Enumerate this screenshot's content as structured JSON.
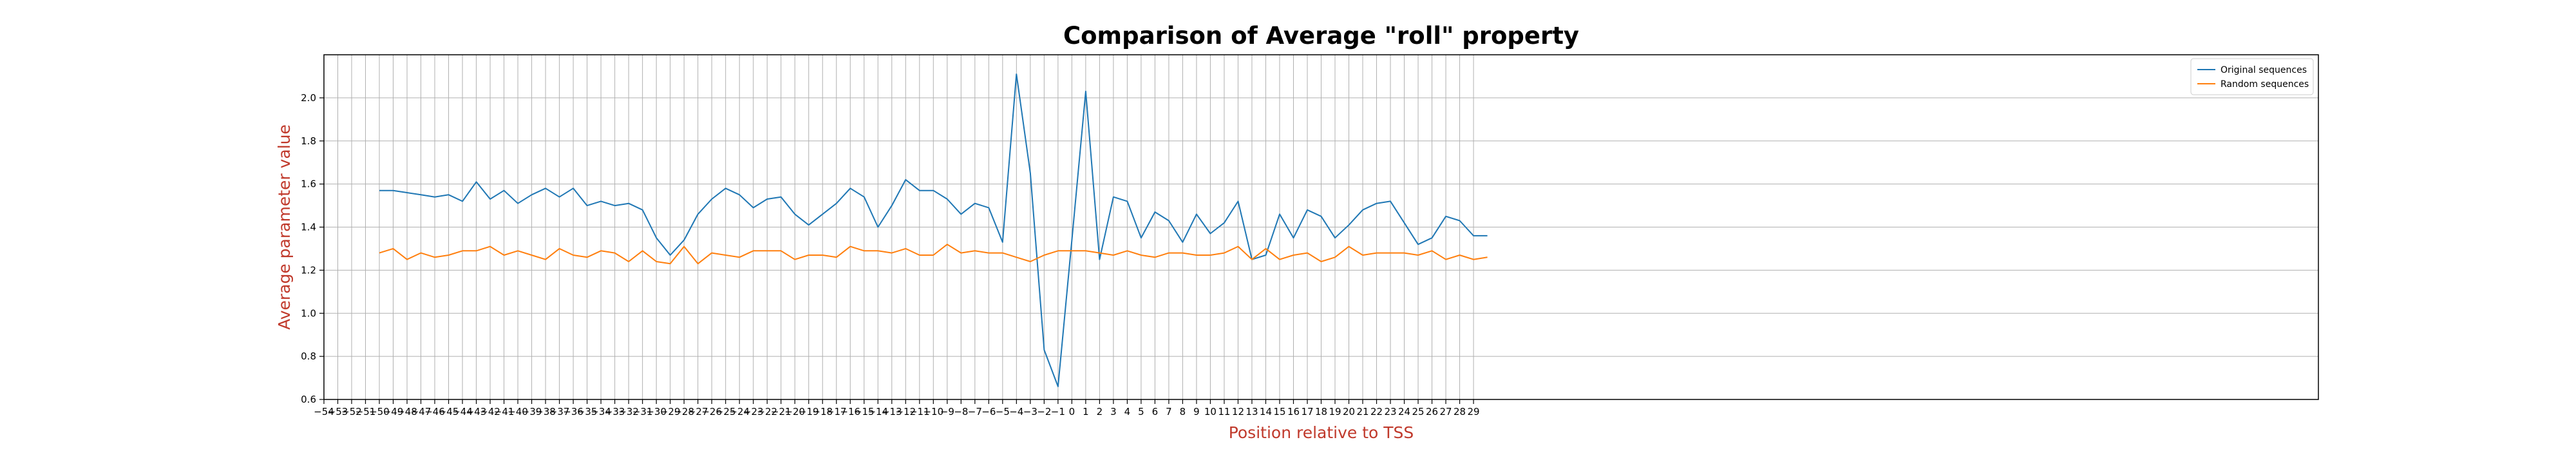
{
  "chart_data": {
    "type": "line",
    "title": "Comparison of Average \"roll\" property",
    "xlabel": "Position relative to TSS",
    "ylabel": "Average parameter value",
    "xlim": [
      -54,
      90
    ],
    "ylim": [
      0.6,
      2.2
    ],
    "grid": true,
    "legend_position": "top-right",
    "x_ticks": [
      -54,
      -53,
      -52,
      -51,
      -50,
      -49,
      -48,
      -47,
      -46,
      -45,
      -44,
      -43,
      -42,
      -41,
      -40,
      -39,
      -38,
      -37,
      -36,
      -35,
      -34,
      -33,
      -32,
      -31,
      -30,
      -29,
      -28,
      -27,
      -26,
      -25,
      -24,
      -23,
      -22,
      -21,
      -20,
      -19,
      -18,
      -17,
      -16,
      -15,
      -14,
      -13,
      -12,
      -11,
      -10,
      -9,
      -8,
      -7,
      -6,
      -5,
      -4,
      -3,
      -2,
      -1,
      0,
      1,
      2,
      3,
      4,
      5,
      6,
      7,
      8,
      9,
      10,
      11,
      12,
      13,
      14,
      15,
      16,
      17,
      18,
      19,
      20,
      21,
      22,
      23,
      24,
      25,
      26,
      27,
      28,
      29
    ],
    "y_ticks": [
      0.6,
      0.8,
      1.0,
      1.2,
      1.4,
      1.6,
      1.8,
      2.0
    ],
    "x": [
      -50,
      -49,
      -48,
      -47,
      -46,
      -45,
      -44,
      -43,
      -42,
      -41,
      -40,
      -39,
      -38,
      -37,
      -36,
      -35,
      -34,
      -33,
      -32,
      -31,
      -30,
      -29,
      -28,
      -27,
      -26,
      -25,
      -24,
      -23,
      -22,
      -21,
      -20,
      -19,
      -18,
      -17,
      -16,
      -15,
      -14,
      -13,
      -12,
      -11,
      -10,
      -9,
      -8,
      -7,
      -6,
      -5,
      -4,
      -3,
      -2,
      -1,
      0,
      1,
      2,
      3,
      4,
      5,
      6,
      7,
      8,
      9,
      10,
      11,
      12,
      13,
      14,
      15,
      16,
      17,
      18,
      19,
      20,
      21,
      22,
      23,
      24,
      25,
      26,
      27,
      28,
      29,
      30
    ],
    "series": [
      {
        "name": "Original sequences",
        "color": "#1f77b4",
        "values": [
          1.57,
          1.57,
          1.56,
          1.55,
          1.54,
          1.55,
          1.52,
          1.61,
          1.53,
          1.57,
          1.51,
          1.55,
          1.58,
          1.54,
          1.58,
          1.5,
          1.52,
          1.5,
          1.51,
          1.48,
          1.35,
          1.27,
          1.34,
          1.46,
          1.53,
          1.58,
          1.55,
          1.49,
          1.53,
          1.54,
          1.46,
          1.41,
          1.46,
          1.51,
          1.58,
          1.54,
          1.4,
          1.5,
          1.62,
          1.57,
          1.57,
          1.53,
          1.46,
          1.51,
          1.49,
          1.33,
          2.11,
          1.65,
          0.83,
          0.66,
          1.34,
          2.03,
          1.25,
          1.54,
          1.52,
          1.35,
          1.47,
          1.43,
          1.33,
          1.46,
          1.37,
          1.42,
          1.52,
          1.25,
          1.27,
          1.46,
          1.35,
          1.48,
          1.45,
          1.35,
          1.41,
          1.48,
          1.51,
          1.52,
          1.42,
          1.32,
          1.35,
          1.45,
          1.43,
          1.36,
          1.36
        ]
      },
      {
        "name": "Random sequences",
        "color": "#ff7f0e",
        "values": [
          1.28,
          1.3,
          1.25,
          1.28,
          1.26,
          1.27,
          1.29,
          1.29,
          1.31,
          1.27,
          1.29,
          1.27,
          1.25,
          1.3,
          1.27,
          1.26,
          1.29,
          1.28,
          1.24,
          1.29,
          1.24,
          1.23,
          1.31,
          1.23,
          1.28,
          1.27,
          1.26,
          1.29,
          1.29,
          1.29,
          1.25,
          1.27,
          1.27,
          1.26,
          1.31,
          1.29,
          1.29,
          1.28,
          1.3,
          1.27,
          1.27,
          1.32,
          1.28,
          1.29,
          1.28,
          1.28,
          1.26,
          1.24,
          1.27,
          1.29,
          1.29,
          1.29,
          1.28,
          1.27,
          1.29,
          1.27,
          1.26,
          1.28,
          1.28,
          1.27,
          1.27,
          1.28,
          1.31,
          1.25,
          1.3,
          1.25,
          1.27,
          1.28,
          1.24,
          1.26,
          1.31,
          1.27,
          1.28,
          1.28,
          1.28,
          1.27,
          1.29,
          1.25,
          1.27,
          1.25,
          1.26
        ]
      }
    ]
  }
}
